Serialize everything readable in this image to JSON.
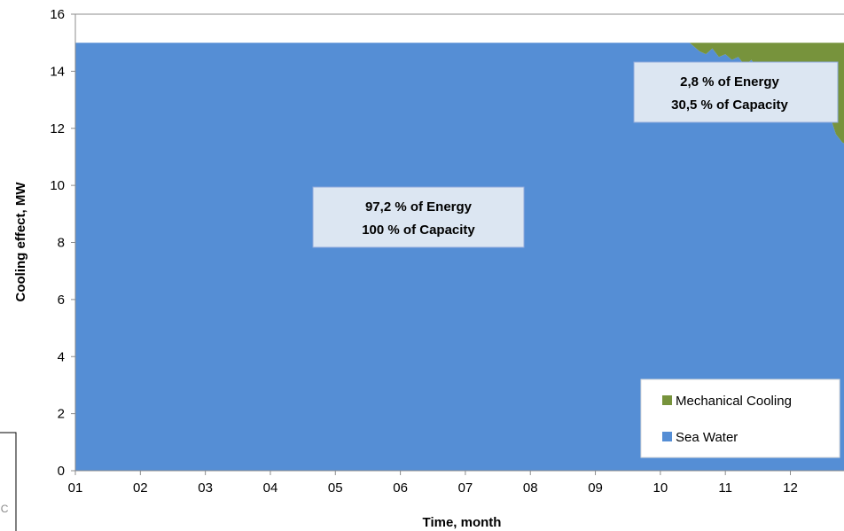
{
  "chart_data": {
    "type": "area",
    "xlabel": "Time, month",
    "ylabel": "Cooling effect, MW",
    "xlim": [
      1,
      12.9
    ],
    "ylim": [
      0,
      16
    ],
    "x_ticks": [
      "01",
      "02",
      "03",
      "04",
      "05",
      "06",
      "07",
      "08",
      "09",
      "10",
      "11",
      "12"
    ],
    "y_ticks": [
      "0",
      "2",
      "4",
      "6",
      "8",
      "10",
      "12",
      "14",
      "16"
    ],
    "grid": false,
    "stacked": true,
    "series": [
      {
        "name": "Sea Water",
        "color": "#558ed5",
        "x": [
          1,
          10.45,
          10.5,
          10.6,
          10.7,
          10.8,
          10.9,
          11.0,
          11.1,
          11.2,
          11.3,
          11.4,
          11.5,
          11.6,
          11.7,
          11.8,
          11.9,
          12.0,
          12.1,
          12.2,
          12.3,
          12.4,
          12.5,
          12.6,
          12.7,
          12.8,
          12.9
        ],
        "values": [
          15,
          15,
          14.9,
          14.7,
          14.6,
          14.8,
          14.5,
          14.6,
          14.4,
          14.5,
          14.2,
          14.4,
          14.1,
          14.2,
          13.9,
          14.1,
          13.8,
          13.7,
          13.5,
          13.4,
          13.3,
          13.1,
          12.9,
          12.5,
          11.8,
          11.5,
          11.4
        ]
      },
      {
        "name": "Mechanical Cooling",
        "color": "#77933c",
        "x": [
          1,
          10.45,
          10.5,
          10.6,
          10.7,
          10.8,
          10.9,
          11.0,
          11.1,
          11.2,
          11.3,
          11.4,
          11.5,
          11.6,
          11.7,
          11.8,
          11.9,
          12.0,
          12.1,
          12.2,
          12.3,
          12.4,
          12.5,
          12.6,
          12.7,
          12.8,
          12.9
        ],
        "values": [
          0,
          0,
          0.1,
          0.3,
          0.4,
          0.2,
          0.5,
          0.4,
          0.6,
          0.5,
          0.8,
          0.6,
          0.9,
          0.8,
          1.1,
          0.9,
          1.2,
          1.3,
          1.5,
          1.6,
          1.7,
          1.9,
          2.1,
          2.5,
          3.2,
          3.5,
          3.6
        ]
      }
    ],
    "annotations": [
      {
        "line1": "97,2 % of Energy",
        "line2": "100 % of Capacity",
        "x": 6.25,
        "y": 8.9
      },
      {
        "line1": "2,8 % of Energy",
        "line2": "30,5 % of Capacity",
        "x": 11.1,
        "y": 12.9
      }
    ],
    "legend": {
      "position": "bottom-right",
      "entries": [
        "Mechanical Cooling",
        "Sea Water"
      ]
    },
    "fragment_text": "°C"
  }
}
